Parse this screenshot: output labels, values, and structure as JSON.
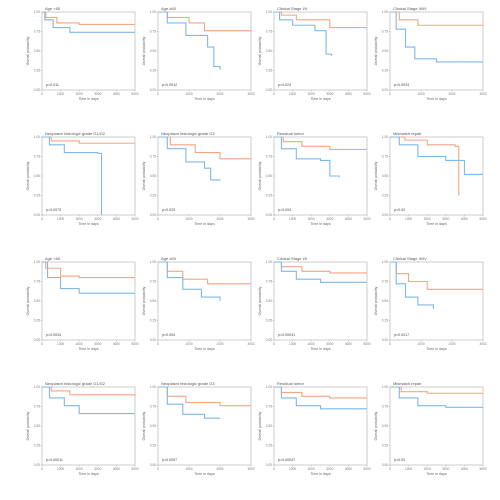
{
  "colors": {
    "high": "#f4a582",
    "low": "#7fb8e6",
    "axis": "#9a9a9a"
  },
  "chart_data": [
    {
      "type": "line",
      "title": "Age <65",
      "pvalue": "p=0.011",
      "ylabel": "Overall probability",
      "xlabel": "Time in days",
      "xlim": [
        0,
        5000
      ],
      "ylim": [
        0,
        1
      ],
      "series": [
        {
          "color": "#f4a582",
          "points": [
            [
              0,
              1
            ],
            [
              200,
              0.93
            ],
            [
              800,
              0.86
            ],
            [
              2000,
              0.84
            ],
            [
              5000,
              0.84
            ]
          ]
        },
        {
          "color": "#7fb8e6",
          "points": [
            [
              0,
              1
            ],
            [
              150,
              0.9
            ],
            [
              600,
              0.8
            ],
            [
              1500,
              0.74
            ],
            [
              5000,
              0.74
            ]
          ]
        }
      ]
    },
    {
      "type": "line",
      "title": "Age ≥65",
      "pvalue": "p=0.0012",
      "ylabel": "Overall probability",
      "xlabel": "Time in days",
      "xlim": [
        0,
        3000
      ],
      "ylim": [
        0,
        1
      ],
      "series": [
        {
          "color": "#f4a582",
          "points": [
            [
              0,
              1
            ],
            [
              300,
              0.93
            ],
            [
              1000,
              0.86
            ],
            [
              1500,
              0.76
            ],
            [
              3000,
              0.74
            ]
          ]
        },
        {
          "color": "#7fb8e6",
          "points": [
            [
              0,
              1
            ],
            [
              300,
              0.86
            ],
            [
              900,
              0.7
            ],
            [
              1600,
              0.55
            ],
            [
              1800,
              0.3
            ],
            [
              2000,
              0.26
            ]
          ]
        }
      ]
    },
    {
      "type": "line",
      "title": "Clinical Stage I/II",
      "pvalue": "p=0.024",
      "ylabel": "Overall probability",
      "xlabel": "Time in days",
      "xlim": [
        0,
        5000
      ],
      "ylim": [
        0,
        1
      ],
      "series": [
        {
          "color": "#f4a582",
          "points": [
            [
              0,
              1
            ],
            [
              400,
              0.96
            ],
            [
              1200,
              0.9
            ],
            [
              3000,
              0.8
            ],
            [
              5000,
              0.8
            ]
          ]
        },
        {
          "color": "#7fb8e6",
          "points": [
            [
              0,
              1
            ],
            [
              300,
              0.9
            ],
            [
              1000,
              0.83
            ],
            [
              2200,
              0.76
            ],
            [
              2800,
              0.46
            ],
            [
              3100,
              0.44
            ]
          ]
        }
      ]
    },
    {
      "type": "line",
      "title": "Clinical Stage III/IV",
      "pvalue": "p=0.0033",
      "ylabel": "Overall probability",
      "xlabel": "Time in days",
      "xlim": [
        0,
        3000
      ],
      "ylim": [
        0,
        1
      ],
      "series": [
        {
          "color": "#f4a582",
          "points": [
            [
              0,
              1
            ],
            [
              300,
              0.9
            ],
            [
              900,
              0.83
            ],
            [
              3000,
              0.82
            ]
          ]
        },
        {
          "color": "#7fb8e6",
          "points": [
            [
              0,
              1
            ],
            [
              200,
              0.78
            ],
            [
              500,
              0.55
            ],
            [
              800,
              0.4
            ],
            [
              1500,
              0.36
            ],
            [
              3000,
              0.36
            ]
          ]
        }
      ]
    },
    {
      "type": "line",
      "title": "Neoplasm histologic grade G1/G2",
      "pvalue": "p=0.0073",
      "ylabel": "Overall probability",
      "xlabel": "Time in days",
      "xlim": [
        0,
        5000
      ],
      "ylim": [
        0,
        1
      ],
      "series": [
        {
          "color": "#f4a582",
          "points": [
            [
              0,
              1
            ],
            [
              500,
              0.95
            ],
            [
              2000,
              0.92
            ],
            [
              5000,
              0.92
            ]
          ]
        },
        {
          "color": "#7fb8e6",
          "points": [
            [
              0,
              1
            ],
            [
              400,
              0.9
            ],
            [
              1200,
              0.8
            ],
            [
              3000,
              0.79
            ],
            [
              3200,
              0.0
            ]
          ]
        }
      ]
    },
    {
      "type": "line",
      "title": "Neoplasm histologic grade G3",
      "pvalue": "p=0.023",
      "ylabel": "Overall probability",
      "xlabel": "Time in days",
      "xlim": [
        0,
        3000
      ],
      "ylim": [
        0,
        1
      ],
      "series": [
        {
          "color": "#f4a582",
          "points": [
            [
              0,
              1
            ],
            [
              400,
              0.9
            ],
            [
              1200,
              0.8
            ],
            [
              2000,
              0.72
            ],
            [
              3000,
              0.7
            ]
          ]
        },
        {
          "color": "#7fb8e6",
          "points": [
            [
              0,
              1
            ],
            [
              300,
              0.85
            ],
            [
              900,
              0.68
            ],
            [
              1500,
              0.6
            ],
            [
              1700,
              0.45
            ],
            [
              2000,
              0.44
            ]
          ]
        }
      ]
    },
    {
      "type": "line",
      "title": "Residual tumor",
      "pvalue": "p=0.004",
      "ylabel": "Overall probability",
      "xlabel": "Time in days",
      "xlim": [
        0,
        5000
      ],
      "ylim": [
        0,
        1
      ],
      "series": [
        {
          "color": "#f4a582",
          "points": [
            [
              0,
              1
            ],
            [
              500,
              0.94
            ],
            [
              1500,
              0.88
            ],
            [
              3000,
              0.84
            ],
            [
              5000,
              0.84
            ]
          ]
        },
        {
          "color": "#7fb8e6",
          "points": [
            [
              0,
              1
            ],
            [
              400,
              0.85
            ],
            [
              1200,
              0.72
            ],
            [
              2500,
              0.7
            ],
            [
              3000,
              0.5
            ],
            [
              3500,
              0.48
            ]
          ]
        }
      ]
    },
    {
      "type": "line",
      "title": "Mismatch repair",
      "pvalue": "p=0.02",
      "ylabel": "Overall probability",
      "xlabel": "Time in days",
      "xlim": [
        0,
        5000
      ],
      "ylim": [
        0,
        1
      ],
      "series": [
        {
          "color": "#f4a582",
          "points": [
            [
              0,
              1
            ],
            [
              800,
              0.96
            ],
            [
              2000,
              0.9
            ],
            [
              3500,
              0.88
            ],
            [
              3700,
              0.25
            ]
          ]
        },
        {
          "color": "#7fb8e6",
          "points": [
            [
              0,
              1
            ],
            [
              500,
              0.9
            ],
            [
              1500,
              0.75
            ],
            [
              3000,
              0.7
            ],
            [
              4000,
              0.52
            ],
            [
              5000,
              0.52
            ]
          ]
        }
      ]
    },
    {
      "type": "line",
      "title": "Age <65",
      "pvalue": "p=0.0034",
      "ylabel": "Overall probability",
      "xlabel": "Time in days",
      "xlim": [
        0,
        5000
      ],
      "ylim": [
        0,
        1
      ],
      "series": [
        {
          "color": "#f4a582",
          "points": [
            [
              0,
              1
            ],
            [
              200,
              0.92
            ],
            [
              1000,
              0.82
            ],
            [
              2000,
              0.8
            ],
            [
              5000,
              0.8
            ]
          ]
        },
        {
          "color": "#7fb8e6",
          "points": [
            [
              0,
              1
            ],
            [
              300,
              0.8
            ],
            [
              1000,
              0.66
            ],
            [
              2000,
              0.6
            ],
            [
              5000,
              0.6
            ]
          ]
        }
      ]
    },
    {
      "type": "line",
      "title": "Age ≥65",
      "pvalue": "p=0.004",
      "ylabel": "Overall probability",
      "xlabel": "Time in days",
      "xlim": [
        0,
        3000
      ],
      "ylim": [
        0,
        1
      ],
      "series": [
        {
          "color": "#f4a582",
          "points": [
            [
              0,
              1
            ],
            [
              300,
              0.88
            ],
            [
              800,
              0.78
            ],
            [
              1600,
              0.72
            ],
            [
              3000,
              0.72
            ]
          ]
        },
        {
          "color": "#7fb8e6",
          "points": [
            [
              0,
              1
            ],
            [
              300,
              0.8
            ],
            [
              800,
              0.65
            ],
            [
              1400,
              0.55
            ],
            [
              2000,
              0.5
            ]
          ]
        }
      ]
    },
    {
      "type": "line",
      "title": "Clinical Stage I/II",
      "pvalue": "p=0.00041",
      "ylabel": "Overall probability",
      "xlabel": "Time in days",
      "xlim": [
        0,
        5000
      ],
      "ylim": [
        0,
        1
      ],
      "series": [
        {
          "color": "#f4a582",
          "points": [
            [
              0,
              1
            ],
            [
              400,
              0.94
            ],
            [
              1500,
              0.88
            ],
            [
              3000,
              0.86
            ],
            [
              5000,
              0.86
            ]
          ]
        },
        {
          "color": "#7fb8e6",
          "points": [
            [
              0,
              1
            ],
            [
              400,
              0.88
            ],
            [
              1200,
              0.78
            ],
            [
              2500,
              0.74
            ],
            [
              5000,
              0.74
            ]
          ]
        }
      ]
    },
    {
      "type": "line",
      "title": "Clinical Stage III/IV",
      "pvalue": "p=0.0017",
      "ylabel": "Overall probability",
      "xlabel": "Time in days",
      "xlim": [
        0,
        3000
      ],
      "ylim": [
        0,
        1
      ],
      "series": [
        {
          "color": "#f4a582",
          "points": [
            [
              0,
              1
            ],
            [
              200,
              0.85
            ],
            [
              600,
              0.75
            ],
            [
              1200,
              0.65
            ],
            [
              3000,
              0.65
            ]
          ]
        },
        {
          "color": "#7fb8e6",
          "points": [
            [
              0,
              1
            ],
            [
              200,
              0.72
            ],
            [
              500,
              0.55
            ],
            [
              900,
              0.45
            ],
            [
              1400,
              0.4
            ]
          ]
        }
      ]
    },
    {
      "type": "line",
      "title": "Neoplasm histologic grade G1/G2",
      "pvalue": "p=0.00011",
      "ylabel": "Overall probability",
      "xlabel": "Time in days",
      "xlim": [
        0,
        5000
      ],
      "ylim": [
        0,
        1
      ],
      "series": [
        {
          "color": "#f4a582",
          "points": [
            [
              0,
              1
            ],
            [
              500,
              0.95
            ],
            [
              1500,
              0.9
            ],
            [
              5000,
              0.88
            ]
          ]
        },
        {
          "color": "#7fb8e6",
          "points": [
            [
              0,
              1
            ],
            [
              400,
              0.86
            ],
            [
              1200,
              0.76
            ],
            [
              2000,
              0.66
            ],
            [
              5000,
              0.66
            ]
          ]
        }
      ]
    },
    {
      "type": "line",
      "title": "Neoplasm histologic grade G3",
      "pvalue": "p=0.0057",
      "ylabel": "Overall probability",
      "xlabel": "Time in days",
      "xlim": [
        0,
        3000
      ],
      "ylim": [
        0,
        1
      ],
      "series": [
        {
          "color": "#f4a582",
          "points": [
            [
              0,
              1
            ],
            [
              300,
              0.88
            ],
            [
              900,
              0.8
            ],
            [
              2000,
              0.76
            ],
            [
              3000,
              0.76
            ]
          ]
        },
        {
          "color": "#7fb8e6",
          "points": [
            [
              0,
              1
            ],
            [
              300,
              0.78
            ],
            [
              800,
              0.65
            ],
            [
              1500,
              0.6
            ],
            [
              2000,
              0.6
            ]
          ]
        }
      ]
    },
    {
      "type": "line",
      "title": "Residual tumor",
      "pvalue": "p=0.00047",
      "ylabel": "Overall probability",
      "xlabel": "Time in days",
      "xlim": [
        0,
        5000
      ],
      "ylim": [
        0,
        1
      ],
      "series": [
        {
          "color": "#f4a582",
          "points": [
            [
              0,
              1
            ],
            [
              400,
              0.93
            ],
            [
              1500,
              0.88
            ],
            [
              3000,
              0.86
            ],
            [
              5000,
              0.86
            ]
          ]
        },
        {
          "color": "#7fb8e6",
          "points": [
            [
              0,
              1
            ],
            [
              400,
              0.86
            ],
            [
              1200,
              0.76
            ],
            [
              2500,
              0.72
            ],
            [
              5000,
              0.72
            ]
          ]
        }
      ]
    },
    {
      "type": "line",
      "title": "Mismatch repair",
      "pvalue": "p=0.03",
      "ylabel": "Overall probability",
      "xlabel": "Time in days",
      "xlim": [
        0,
        5000
      ],
      "ylim": [
        0,
        1
      ],
      "series": [
        {
          "color": "#f4a582",
          "points": [
            [
              0,
              1
            ],
            [
              600,
              0.94
            ],
            [
              2000,
              0.92
            ],
            [
              5000,
              0.92
            ]
          ]
        },
        {
          "color": "#7fb8e6",
          "points": [
            [
              0,
              1
            ],
            [
              500,
              0.86
            ],
            [
              1500,
              0.76
            ],
            [
              3000,
              0.74
            ],
            [
              5000,
              0.74
            ]
          ]
        }
      ]
    }
  ]
}
